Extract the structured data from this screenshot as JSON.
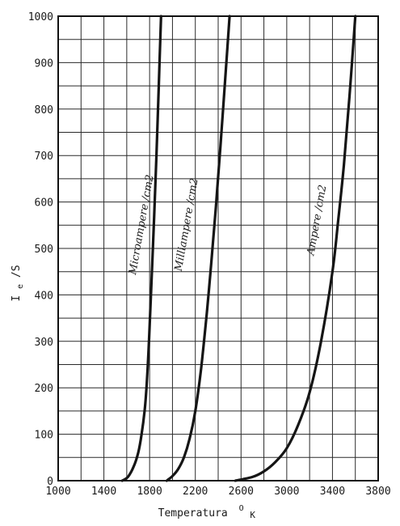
{
  "chart_data": {
    "type": "line",
    "title": "",
    "xlabel": "Temperatura",
    "xlabel_sup": "O",
    "xlabel_sub": "K",
    "ylabel": "I",
    "ylabel_sub": "e",
    "ylabel_tail": "/S",
    "xlim": [
      1000,
      3800
    ],
    "ylim": [
      0,
      1000
    ],
    "x_ticks": [
      1000,
      1400,
      1800,
      2200,
      2600,
      3000,
      3400,
      3800
    ],
    "x_tick_labels": [
      "1000",
      "1400",
      "1800",
      "2200",
      "2600",
      "3000",
      "3400",
      "3800"
    ],
    "y_ticks": [
      0,
      100,
      200,
      300,
      400,
      500,
      600,
      700,
      800,
      900,
      1000
    ],
    "y_tick_labels": [
      "0",
      "100",
      "200",
      "300",
      "400",
      "500",
      "600",
      "700",
      "800",
      "900",
      "1000"
    ],
    "grid": true,
    "series": [
      {
        "name": "Microampere /cm2",
        "label_at": [
          1755,
          550
        ],
        "x": [
          1560,
          1610,
          1660,
          1700,
          1730,
          1760,
          1780,
          1800,
          1820,
          1840,
          1860,
          1880,
          1900
        ],
        "y": [
          0,
          8,
          30,
          60,
          100,
          160,
          230,
          330,
          450,
          570,
          700,
          850,
          1000
        ]
      },
      {
        "name": "Milliampere /cm2",
        "label_at": [
          2150,
          550
        ],
        "x": [
          1950,
          2000,
          2050,
          2100,
          2150,
          2200,
          2250,
          2300,
          2340,
          2380,
          2420,
          2460,
          2500
        ],
        "y": [
          0,
          10,
          25,
          50,
          90,
          150,
          240,
          360,
          470,
          590,
          720,
          860,
          1000
        ]
      },
      {
        "name": "Ampere /cm2",
        "label_at": [
          3290,
          560
        ],
        "x": [
          2550,
          2700,
          2800,
          2900,
          3000,
          3100,
          3200,
          3300,
          3400,
          3450,
          3500,
          3550,
          3600
        ],
        "y": [
          0,
          8,
          20,
          40,
          70,
          120,
          190,
          300,
          450,
          560,
          680,
          830,
          1000
        ]
      }
    ]
  }
}
